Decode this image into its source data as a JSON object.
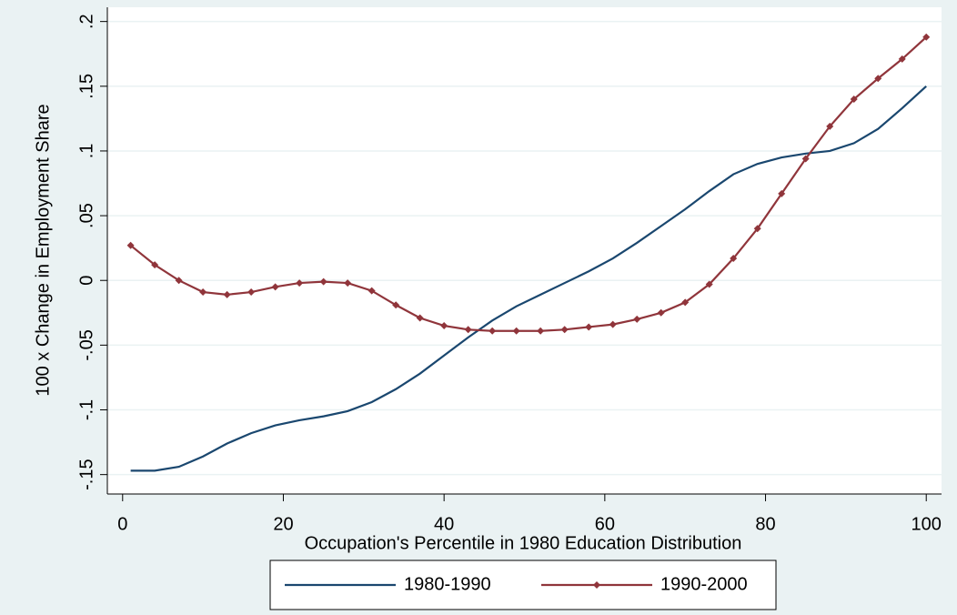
{
  "chart_data": {
    "type": "line",
    "x_label": "Occupation's Percentile in 1980 Education Distribution",
    "y_label": "100 x Change in Employment Share",
    "x": [
      1,
      4,
      7,
      10,
      13,
      16,
      19,
      22,
      25,
      28,
      31,
      34,
      37,
      40,
      43,
      46,
      49,
      52,
      55,
      58,
      61,
      64,
      67,
      70,
      73,
      76,
      79,
      82,
      85,
      88,
      91,
      94,
      97,
      100
    ],
    "series": [
      {
        "name": "1980-1990",
        "color": "#1a476f",
        "marker": false,
        "values": [
          -0.147,
          -0.147,
          -0.144,
          -0.136,
          -0.126,
          -0.118,
          -0.112,
          -0.108,
          -0.105,
          -0.101,
          -0.094,
          -0.084,
          -0.072,
          -0.058,
          -0.044,
          -0.031,
          -0.02,
          -0.011,
          -0.002,
          0.007,
          0.017,
          0.029,
          0.042,
          0.055,
          0.069,
          0.082,
          0.09,
          0.095,
          0.098,
          0.1,
          0.106,
          0.117,
          0.133,
          0.15
        ]
      },
      {
        "name": "1990-2000",
        "color": "#90353b",
        "marker": true,
        "values": [
          0.027,
          0.012,
          0.0,
          -0.009,
          -0.011,
          -0.009,
          -0.005,
          -0.002,
          -0.001,
          -0.002,
          -0.008,
          -0.019,
          -0.029,
          -0.035,
          -0.038,
          -0.039,
          -0.039,
          -0.039,
          -0.038,
          -0.036,
          -0.034,
          -0.03,
          -0.025,
          -0.017,
          -0.003,
          0.017,
          0.04,
          0.067,
          0.094,
          0.119,
          0.14,
          0.156,
          0.171,
          0.188
        ]
      }
    ],
    "xlim": [
      -1.9,
      101.9
    ],
    "ylim": [
      -0.165,
      0.211
    ],
    "xticks": [
      0,
      20,
      40,
      60,
      80,
      100
    ],
    "yticks": [
      {
        "value": -0.15,
        "label": "-.15"
      },
      {
        "value": -0.1,
        "label": "-.1"
      },
      {
        "value": -0.05,
        "label": "-.05"
      },
      0,
      {
        "value": 0.05,
        "label": ".05"
      },
      {
        "value": 0.1,
        "label": ".1"
      },
      {
        "value": 0.15,
        "label": ".15"
      },
      {
        "value": 0.2,
        "label": ".2"
      }
    ],
    "grid": true
  }
}
